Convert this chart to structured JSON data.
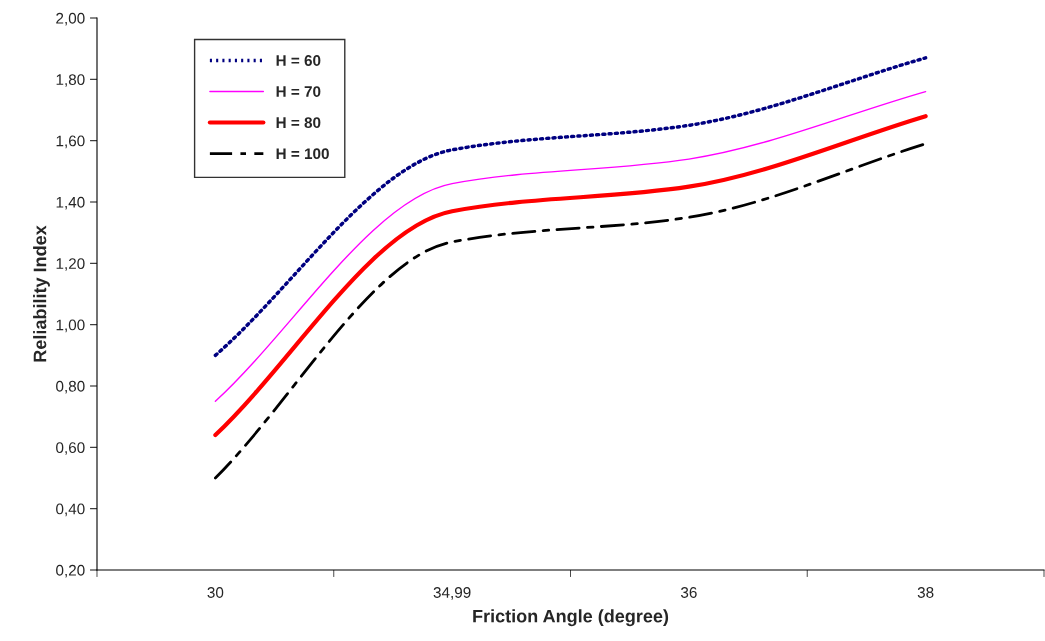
{
  "chart_data": {
    "type": "line",
    "xlabel": "Friction Angle (degree)",
    "ylabel": "Reliability Index",
    "categories": [
      "30",
      "34,99",
      "36",
      "38"
    ],
    "series": [
      {
        "name": "H = 60",
        "color": "#000080",
        "line_style": "dotted",
        "values": [
          0.9,
          1.57,
          1.65,
          1.87
        ]
      },
      {
        "name": "H = 70",
        "color": "#ff00ff",
        "line_style": "solid",
        "values": [
          0.75,
          1.46,
          1.54,
          1.76
        ]
      },
      {
        "name": "H = 80",
        "color": "#ff0000",
        "line_style": "solid",
        "values": [
          0.64,
          1.37,
          1.45,
          1.68
        ]
      },
      {
        "name": "H = 100",
        "color": "#000000",
        "line_style": "dashdot",
        "values": [
          0.5,
          1.27,
          1.35,
          1.59
        ]
      }
    ],
    "ylim": [
      0.2,
      2.0
    ],
    "yticks": [
      {
        "value": 0.2,
        "label": "0,20"
      },
      {
        "value": 0.4,
        "label": "0,40"
      },
      {
        "value": 0.6,
        "label": "0,60"
      },
      {
        "value": 0.8,
        "label": "0,80"
      },
      {
        "value": 1.0,
        "label": "1,00"
      },
      {
        "value": 1.2,
        "label": "1,20"
      },
      {
        "value": 1.4,
        "label": "1,40"
      },
      {
        "value": 1.6,
        "label": "1,60"
      },
      {
        "value": 1.8,
        "label": "1,80"
      },
      {
        "value": 2.0,
        "label": "2,00"
      }
    ],
    "grid": false,
    "legend": "top left",
    "marker": "none"
  }
}
